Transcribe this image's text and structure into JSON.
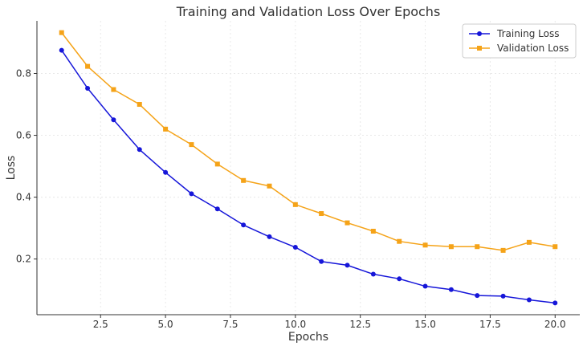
{
  "chart_data": {
    "type": "line",
    "title": "Training and Validation Loss Over Epochs",
    "xlabel": "Epochs",
    "ylabel": "Loss",
    "xlim": [
      0.05,
      20.95
    ],
    "ylim": [
      0.02,
      0.97
    ],
    "xticks": [
      2.5,
      5.0,
      7.5,
      10.0,
      12.5,
      15.0,
      17.5,
      20.0
    ],
    "xtick_labels": [
      "2.5",
      "5.0",
      "7.5",
      "10.0",
      "12.5",
      "15.0",
      "17.5",
      "20.0"
    ],
    "yticks": [
      0.2,
      0.4,
      0.6,
      0.8
    ],
    "ytick_labels": [
      "0.2",
      "0.4",
      "0.6",
      "0.8"
    ],
    "grid": true,
    "legend_position": "top-right",
    "x": [
      1,
      2,
      3,
      4,
      5,
      6,
      7,
      8,
      9,
      10,
      11,
      12,
      13,
      14,
      15,
      16,
      17,
      18,
      19,
      20
    ],
    "series": [
      {
        "name": "Training Loss",
        "color": "#1616d9",
        "marker": "circle",
        "values": [
          0.875,
          0.752,
          0.65,
          0.554,
          0.48,
          0.411,
          0.362,
          0.31,
          0.272,
          0.238,
          0.192,
          0.18,
          0.151,
          0.136,
          0.112,
          0.101,
          0.082,
          0.08,
          0.068,
          0.058
        ]
      },
      {
        "name": "Validation Loss",
        "color": "#f5a318",
        "marker": "square",
        "values": [
          0.932,
          0.823,
          0.748,
          0.7,
          0.62,
          0.57,
          0.507,
          0.454,
          0.436,
          0.376,
          0.347,
          0.317,
          0.29,
          0.257,
          0.245,
          0.24,
          0.24,
          0.228,
          0.254,
          0.24
        ]
      }
    ]
  }
}
